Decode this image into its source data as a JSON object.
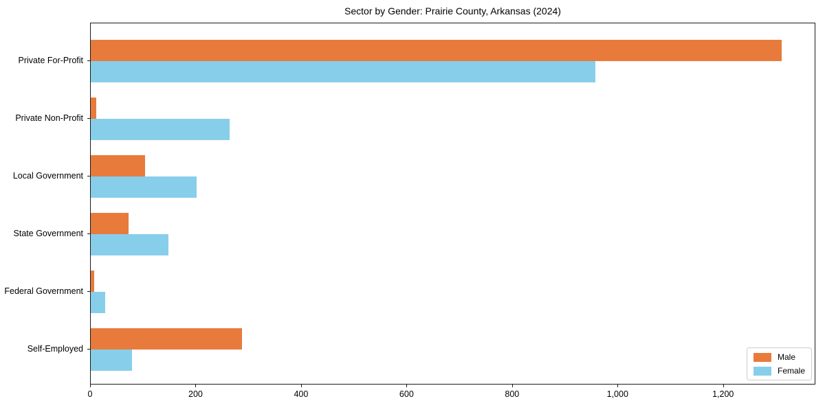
{
  "chart_data": {
    "type": "bar",
    "orientation": "horizontal",
    "title": "Sector by Gender: Prairie County, Arkansas (2024)",
    "xlabel": "",
    "ylabel": "",
    "categories": [
      "Private For-Profit",
      "Private Non-Profit",
      "Local Government",
      "State Government",
      "Federal Government",
      "Self-Employed"
    ],
    "series": [
      {
        "name": "Male",
        "color": "#E87B3C",
        "values": [
          1310,
          10,
          103,
          72,
          6,
          287
        ]
      },
      {
        "name": "Female",
        "color": "#87CEEB",
        "values": [
          956,
          263,
          201,
          147,
          27,
          78
        ]
      }
    ],
    "xlim": [
      0,
      1375
    ],
    "x_ticks": [
      0,
      200,
      400,
      600,
      800,
      1000,
      1200
    ],
    "x_tick_labels": [
      "0",
      "200",
      "400",
      "600",
      "800",
      "1,000",
      "1,200"
    ],
    "grid": false,
    "legend_position": "lower right",
    "background_color": "#ffffff",
    "spine_color": "#1a1a1a"
  }
}
